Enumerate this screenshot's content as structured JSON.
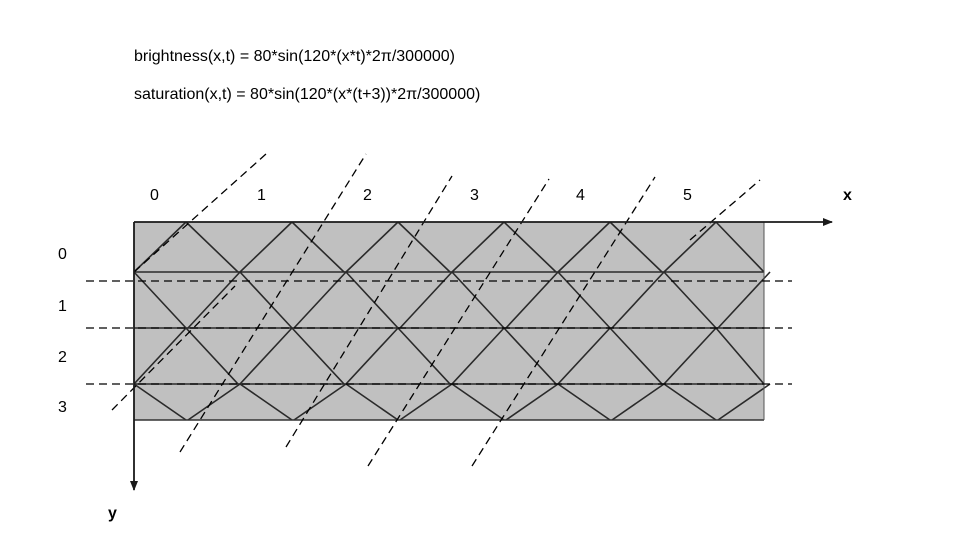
{
  "formulas": {
    "brightness": "brightness(x,t) = 80*sin(120*(x*t)*2π/300000)",
    "saturation": "saturation(x,t) = 80*sin(120*(x*(t+3))*2π/300000)"
  },
  "axes": {
    "x_label": "x",
    "y_label": "y",
    "x_ticks": [
      "0",
      "1",
      "2",
      "3",
      "4",
      "5"
    ],
    "y_ticks": [
      "0",
      "1",
      "2",
      "3"
    ]
  },
  "colors": {
    "fill": "#c0c0c0",
    "lines": "#1a1a1a"
  }
}
